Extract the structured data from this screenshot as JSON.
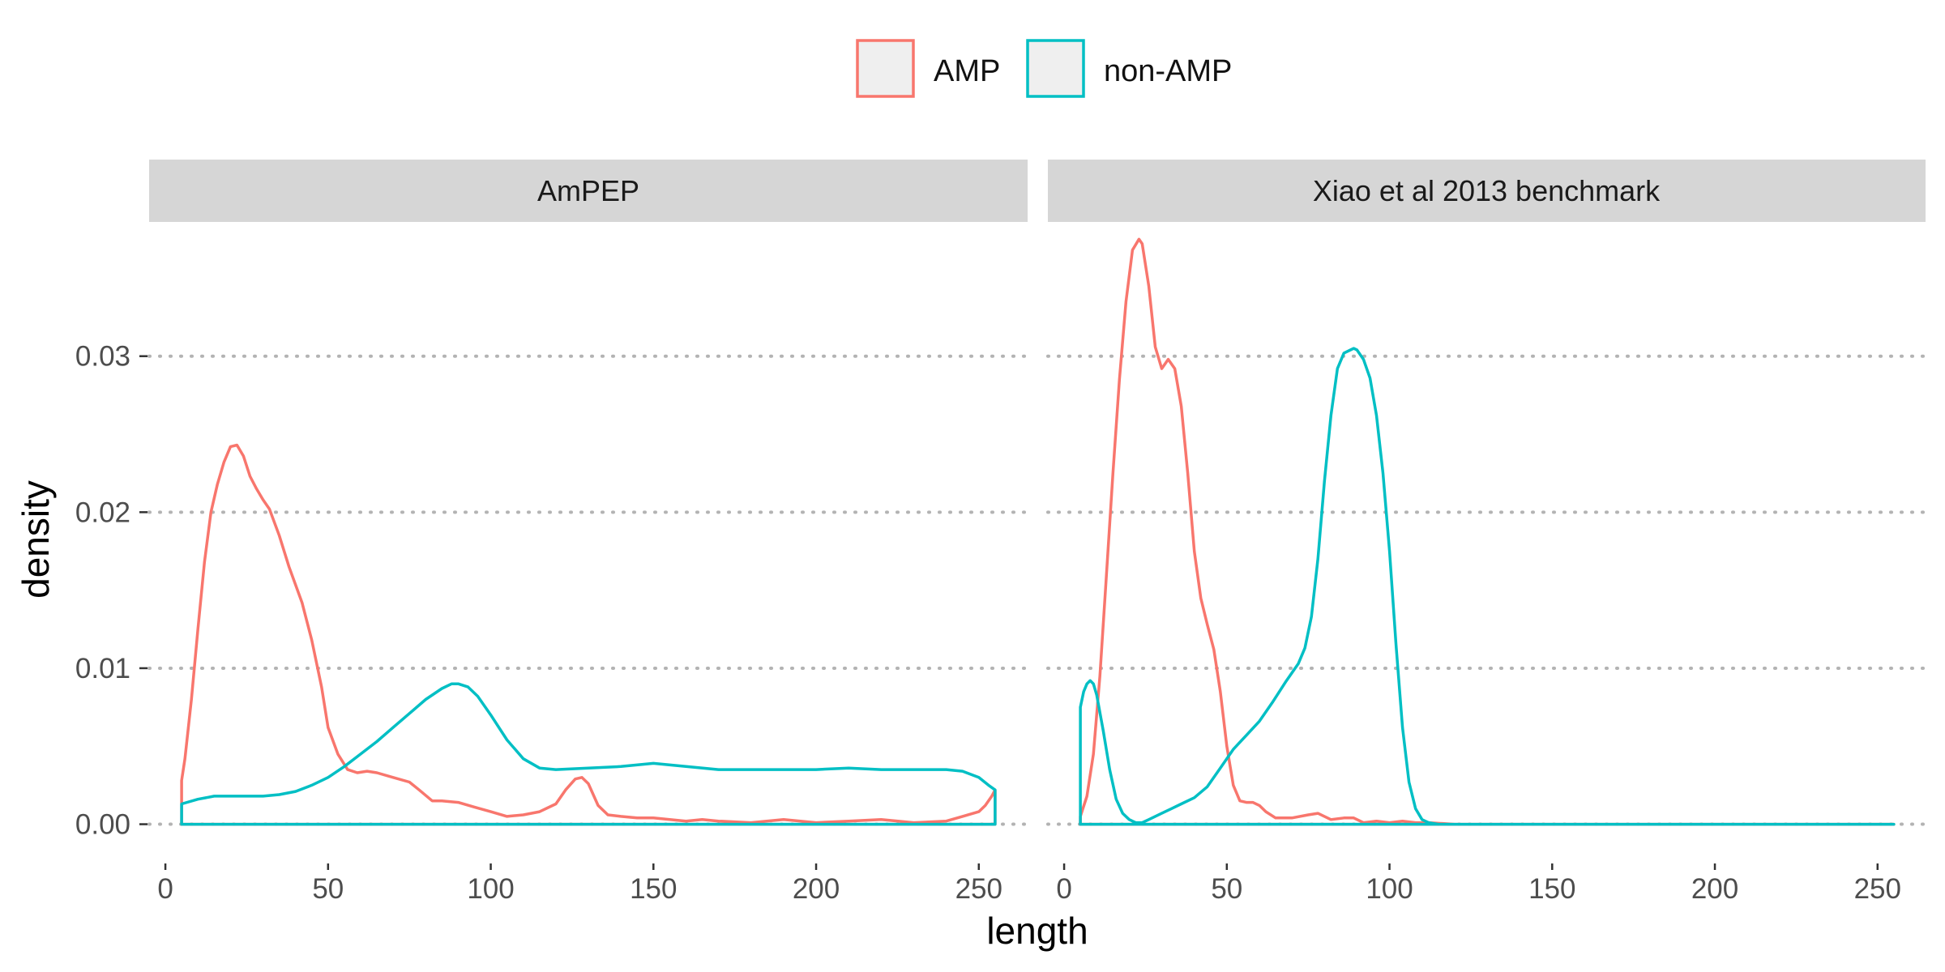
{
  "chart_data": {
    "type": "area",
    "title": "",
    "xlabel": "length",
    "ylabel": "density",
    "xlim": [
      -5,
      265
    ],
    "ylim": [
      -0.0021,
      0.0385
    ],
    "x_ticks": [
      0,
      50,
      100,
      150,
      200,
      250
    ],
    "x_tick_labels": [
      "0",
      "50",
      "100",
      "150",
      "200",
      "250"
    ],
    "y_ticks": [
      0,
      0.01,
      0.02,
      0.03
    ],
    "y_tick_labels": [
      "0.00",
      "0.01",
      "0.02",
      "0.03"
    ],
    "grid": "major y dotted",
    "legend": {
      "position": "top",
      "entries": [
        {
          "label": "AMP",
          "color": "#F8766D"
        },
        {
          "label": "non-AMP",
          "color": "#00BFC4"
        }
      ]
    },
    "panels": [
      {
        "strip": "AmPEP",
        "series": [
          {
            "name": "AMP",
            "color": "#F8766D",
            "x": [
              5,
              6,
              8,
              10,
              12,
              14,
              16,
              18,
              20,
              22,
              24,
              26,
              28,
              30,
              32,
              35,
              38,
              42,
              45,
              48,
              50,
              53,
              56,
              59,
              62,
              65,
              70,
              75,
              78,
              82,
              85,
              90,
              95,
              100,
              105,
              110,
              115,
              120,
              123,
              126,
              128,
              130,
              133,
              136,
              140,
              145,
              150,
              160,
              165,
              170,
              180,
              190,
              200,
              210,
              220,
              230,
              240,
              245,
              250,
              252,
              254,
              255
            ],
            "y": [
              0.0028,
              0.0042,
              0.008,
              0.0125,
              0.0168,
              0.02,
              0.0218,
              0.0232,
              0.0242,
              0.0243,
              0.0236,
              0.0223,
              0.0215,
              0.0208,
              0.0202,
              0.0185,
              0.0165,
              0.0142,
              0.0118,
              0.0088,
              0.0062,
              0.0045,
              0.0035,
              0.0033,
              0.0034,
              0.0033,
              0.003,
              0.0027,
              0.0022,
              0.0015,
              0.0015,
              0.0014,
              0.0011,
              0.0008,
              0.0005,
              0.0006,
              0.0008,
              0.0013,
              0.0022,
              0.0029,
              0.003,
              0.0026,
              0.0012,
              0.0006,
              0.0005,
              0.0004,
              0.0004,
              0.0002,
              0.0003,
              0.0002,
              0.0001,
              0.0003,
              0.0001,
              0.0002,
              0.0003,
              0.0001,
              0.0002,
              0.0005,
              0.0008,
              0.0012,
              0.0018,
              0.0022
            ]
          },
          {
            "name": "non-AMP",
            "color": "#00BFC4",
            "x": [
              5,
              10,
              15,
              20,
              25,
              30,
              35,
              40,
              45,
              50,
              55,
              60,
              65,
              70,
              75,
              80,
              85,
              88,
              90,
              93,
              96,
              100,
              105,
              110,
              115,
              120,
              130,
              140,
              150,
              160,
              170,
              180,
              190,
              200,
              210,
              220,
              230,
              240,
              245,
              250,
              253,
              255
            ],
            "y": [
              0.0013,
              0.0016,
              0.0018,
              0.0018,
              0.0018,
              0.0018,
              0.0019,
              0.0021,
              0.0025,
              0.003,
              0.0037,
              0.0045,
              0.0053,
              0.0062,
              0.0071,
              0.008,
              0.0087,
              0.009,
              0.009,
              0.0088,
              0.0082,
              0.007,
              0.0054,
              0.0042,
              0.0036,
              0.0035,
              0.0036,
              0.0037,
              0.0039,
              0.0037,
              0.0035,
              0.0035,
              0.0035,
              0.0035,
              0.0036,
              0.0035,
              0.0035,
              0.0035,
              0.0034,
              0.003,
              0.0025,
              0.0022
            ]
          }
        ]
      },
      {
        "strip": "Xiao et al 2013 benchmark",
        "series": [
          {
            "name": "AMP",
            "color": "#F8766D",
            "x": [
              5,
              7,
              9,
              11,
              13,
              15,
              17,
              19,
              21,
              23,
              24,
              26,
              28,
              30,
              32,
              34,
              36,
              38,
              40,
              42,
              44,
              46,
              48,
              50,
              52,
              54,
              56,
              58,
              60,
              62,
              65,
              70,
              75,
              78,
              82,
              86,
              89,
              92,
              96,
              100,
              104,
              108,
              112,
              120,
              255
            ],
            "y": [
              0.0005,
              0.0018,
              0.0045,
              0.0095,
              0.016,
              0.0225,
              0.0285,
              0.0335,
              0.0368,
              0.0375,
              0.0372,
              0.0345,
              0.0306,
              0.0292,
              0.0298,
              0.0292,
              0.0268,
              0.0225,
              0.0175,
              0.0145,
              0.0128,
              0.0112,
              0.0085,
              0.005,
              0.0025,
              0.0015,
              0.0014,
              0.0014,
              0.0012,
              0.0008,
              0.0004,
              0.0004,
              0.0006,
              0.0007,
              0.0003,
              0.0004,
              0.0004,
              0.0001,
              0.0002,
              0.0001,
              0.0002,
              0.0001,
              0.0001,
              0,
              0
            ]
          },
          {
            "name": "non-AMP",
            "color": "#00BFC4",
            "x": [
              5,
              6,
              7,
              8,
              9,
              10,
              12,
              14,
              16,
              18,
              20,
              22,
              24,
              26,
              28,
              30,
              33,
              36,
              40,
              44,
              48,
              52,
              56,
              60,
              64,
              68,
              72,
              74,
              76,
              78,
              80,
              82,
              84,
              86,
              88,
              89,
              90,
              92,
              94,
              96,
              98,
              100,
              102,
              104,
              106,
              108,
              110,
              112,
              115,
              120,
              255
            ],
            "y": [
              0.0075,
              0.0085,
              0.009,
              0.0092,
              0.009,
              0.0083,
              0.006,
              0.0035,
              0.0016,
              0.0007,
              0.0003,
              0.0001,
              0.0001,
              0.0003,
              0.0005,
              0.0007,
              0.001,
              0.0013,
              0.0017,
              0.0024,
              0.0036,
              0.0048,
              0.0057,
              0.0066,
              0.0078,
              0.0091,
              0.0103,
              0.0113,
              0.0133,
              0.017,
              0.022,
              0.0262,
              0.0292,
              0.0302,
              0.0304,
              0.0305,
              0.0304,
              0.0298,
              0.0286,
              0.0262,
              0.0225,
              0.0175,
              0.0115,
              0.0062,
              0.0027,
              0.001,
              0.0003,
              0.0001,
              0,
              0,
              0
            ]
          }
        ]
      }
    ]
  }
}
